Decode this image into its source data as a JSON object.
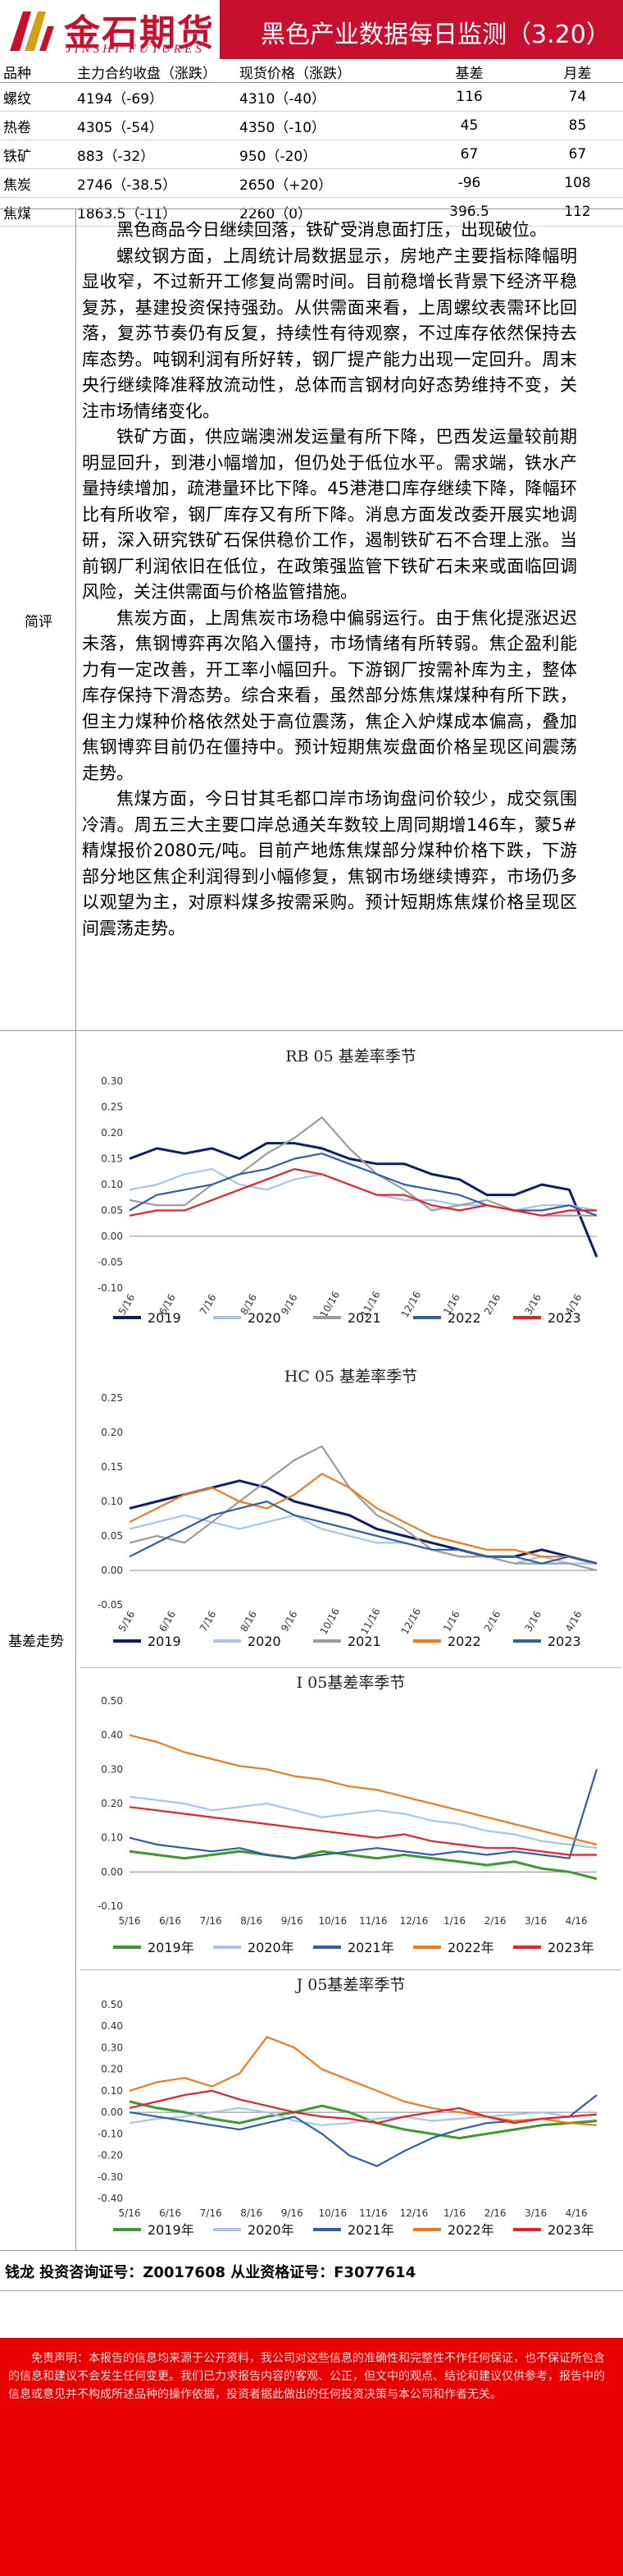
{
  "header": {
    "logo_cn": "金石期货",
    "logo_en": "JINSHI FUTURES",
    "title": "黑色产业数据每日监测（3.20）"
  },
  "price_table": {
    "headers": [
      "品种",
      "主力合约收盘（涨跌）",
      "现货价格（涨跌）",
      "基差",
      "月差"
    ],
    "rows": [
      [
        "螺纹",
        "4194（-69）",
        "4310（-40）",
        "116",
        "74"
      ],
      [
        "热卷",
        "4305（-54）",
        "4350（-10）",
        "45",
        "85"
      ],
      [
        "铁矿",
        "883（-32）",
        "950（-20）",
        "67",
        "67"
      ],
      [
        "焦炭",
        "2746（-38.5）",
        "2650（+20）",
        "-96",
        "108"
      ],
      [
        "焦煤",
        "1863.5（-11）",
        "2260（0）",
        "396.5",
        "112"
      ]
    ]
  },
  "commentary": {
    "label": "简评",
    "paragraphs": [
      "黑色商品今日继续回落，铁矿受消息面打压，出现破位。",
      "螺纹钢方面，上周统计局数据显示，房地产主要指标降幅明显收窄，不过新开工修复尚需时间。目前稳增长背景下经济平稳复苏，基建投资保持强劲。从供需面来看，上周螺纹表需环比回落，复苏节奏仍有反复，持续性有待观察，不过库存依然保持去库态势。吨钢利润有所好转，钢厂提产能力出现一定回升。周末央行继续降准释放流动性，总体而言钢材向好态势维持不变，关注市场情绪变化。",
      "铁矿方面，供应端澳洲发运量有所下降，巴西发运量较前期明显回升，到港小幅增加，但仍处于低位水平。需求端，铁水产量持续增加，疏港量环比下降。45港港口库存继续下降，降幅环比有所收窄，钢厂库存又有所下降。消息方面发改委开展实地调研，深入研究铁矿石保供稳价工作，遏制铁矿石不合理上涨。当前钢厂利润依旧在低位，在政策强监管下铁矿石未来或面临回调风险，关注供需面与价格监管措施。",
      "焦炭方面，上周焦炭市场稳中偏弱运行。由于焦化提涨迟迟未落，焦钢博弈再次陷入僵持，市场情绪有所转弱。焦企盈利能力有一定改善，开工率小幅回升。下游钢厂按需补库为主，整体库存保持下滑态势。综合来看，虽然部分炼焦煤煤种有所下跌，但主力煤种价格依然处于高位震荡，焦企入炉煤成本偏高，叠加焦钢博弈目前仍在僵持中。预计短期焦炭盘面价格呈现区间震荡走势。",
      "焦煤方面，今日甘其毛都口岸市场询盘问价较少，成交氛围冷清。周五三大主要口岸总通关车数较上周同期增146车，蒙5#精煤报价2080元/吨。目前产地炼焦煤部分煤种价格下跌，下游部分地区焦企利润得到小幅修复，焦钢市场继续博弈，市场仍多以观望为主，对原料煤多按需采购。预计短期炼焦煤价格呈现区间震荡走势。"
    ]
  },
  "basis": {
    "label": "基差走势"
  },
  "charts": [
    {
      "type": "line",
      "title": "RB 05 基差率季节",
      "x_ticks": [
        "5/16",
        "6/16",
        "7/16",
        "8/16",
        "9/16",
        "10/16",
        "11/16",
        "12/16",
        "1/16",
        "2/16",
        "3/16",
        "4/16"
      ],
      "ylim": [
        -0.1,
        0.3
      ],
      "y_ticks": [
        "0.30",
        "0.25",
        "0.20",
        "0.15",
        "0.10",
        "0.05",
        "0.00",
        "-0.05",
        "-0.10"
      ],
      "legend": [
        "2019",
        "2020",
        "2021",
        "2022",
        "2023"
      ],
      "colors": [
        "#0b1e6e",
        "#a9c4e8",
        "#9c9c9c",
        "#2e5fa8",
        "#e8202a"
      ],
      "series": [
        {
          "name": "2019",
          "values": [
            0.15,
            0.17,
            0.16,
            0.17,
            0.15,
            0.18,
            0.18,
            0.17,
            0.15,
            0.14,
            0.14,
            0.12,
            0.11,
            0.08,
            0.08,
            0.1,
            0.09,
            -0.04
          ]
        },
        {
          "name": "2020",
          "values": [
            0.09,
            0.1,
            0.12,
            0.13,
            0.1,
            0.09,
            0.11,
            0.12,
            0.1,
            0.08,
            0.07,
            0.07,
            0.06,
            0.06,
            0.05,
            0.06,
            0.06,
            0.05
          ]
        },
        {
          "name": "2021",
          "values": [
            0.07,
            0.06,
            0.06,
            0.1,
            0.12,
            0.16,
            0.19,
            0.23,
            0.17,
            0.12,
            0.09,
            0.05,
            0.06,
            0.07,
            0.05,
            0.04,
            0.04,
            0.04
          ]
        },
        {
          "name": "2022",
          "values": [
            0.05,
            0.08,
            0.09,
            0.1,
            0.12,
            0.13,
            0.15,
            0.16,
            0.14,
            0.12,
            0.1,
            0.09,
            0.08,
            0.06,
            0.05,
            0.05,
            0.06,
            0.04
          ]
        },
        {
          "name": "2023",
          "values": [
            0.04,
            0.05,
            0.05,
            0.07,
            0.09,
            0.11,
            0.13,
            0.12,
            0.1,
            0.08,
            0.08,
            0.06,
            0.05,
            0.06,
            0.05,
            0.04,
            0.05,
            0.05
          ]
        }
      ]
    },
    {
      "type": "line",
      "title": "HC 05 基差率季节",
      "x_ticks": [
        "5/16",
        "6/16",
        "7/16",
        "8/16",
        "9/16",
        "10/16",
        "11/16",
        "12/16",
        "1/16",
        "2/16",
        "3/16",
        "4/16"
      ],
      "ylim": [
        -0.05,
        0.25
      ],
      "y_ticks": [
        "0.25",
        "0.20",
        "0.15",
        "0.10",
        "0.05",
        "0.00",
        "-0.05"
      ],
      "legend": [
        "2019",
        "2020",
        "2021",
        "2022",
        "2023"
      ],
      "colors": [
        "#0b1e6e",
        "#a9c4e8",
        "#9c9c9c",
        "#f07a1a",
        "#2e5fa8"
      ],
      "series": [
        {
          "name": "2019",
          "values": [
            0.09,
            0.1,
            0.11,
            0.12,
            0.13,
            0.12,
            0.1,
            0.09,
            0.08,
            0.06,
            0.05,
            0.04,
            0.03,
            0.02,
            0.02,
            0.03,
            0.02,
            0.01
          ]
        },
        {
          "name": "2020",
          "values": [
            0.06,
            0.07,
            0.08,
            0.07,
            0.06,
            0.07,
            0.08,
            0.06,
            0.05,
            0.04,
            0.04,
            0.03,
            0.02,
            0.02,
            0.01,
            0.02,
            0.01,
            0.01
          ]
        },
        {
          "name": "2021",
          "values": [
            0.04,
            0.05,
            0.04,
            0.07,
            0.1,
            0.13,
            0.16,
            0.18,
            0.12,
            0.08,
            0.06,
            0.03,
            0.02,
            0.02,
            0.01,
            0.01,
            0.01,
            0.0
          ]
        },
        {
          "name": "2022",
          "values": [
            0.07,
            0.09,
            0.11,
            0.12,
            0.1,
            0.09,
            0.11,
            0.14,
            0.12,
            0.09,
            0.07,
            0.05,
            0.04,
            0.03,
            0.03,
            0.02,
            0.02,
            0.01
          ]
        },
        {
          "name": "2023",
          "values": [
            0.02,
            0.04,
            0.06,
            0.08,
            0.09,
            0.1,
            0.08,
            0.07,
            0.06,
            0.05,
            0.04,
            0.03,
            0.03,
            0.02,
            0.02,
            0.01,
            0.02,
            0.01
          ]
        }
      ]
    },
    {
      "type": "line",
      "title": "I 05基差率季节",
      "x_ticks": [
        "5/16",
        "6/16",
        "7/16",
        "8/16",
        "9/16",
        "10/16",
        "11/16",
        "12/16",
        "1/16",
        "2/16",
        "3/16",
        "4/16"
      ],
      "ylim": [
        -0.1,
        0.5
      ],
      "y_ticks": [
        "0.50",
        "0.40",
        "0.30",
        "0.20",
        "0.10",
        "0.00",
        "-0.10"
      ],
      "legend": [
        "2019年",
        "2020年",
        "2021年",
        "2022年",
        "2023年"
      ],
      "colors": [
        "#3a9a2a",
        "#a9c4e8",
        "#2e5fa8",
        "#f07a1a",
        "#e8202a"
      ],
      "series": [
        {
          "name": "2019年",
          "values": [
            0.06,
            0.05,
            0.04,
            0.05,
            0.06,
            0.05,
            0.04,
            0.06,
            0.05,
            0.04,
            0.05,
            0.04,
            0.03,
            0.02,
            0.03,
            0.01,
            0.0,
            -0.02
          ]
        },
        {
          "name": "2020年",
          "values": [
            0.22,
            0.21,
            0.2,
            0.18,
            0.19,
            0.2,
            0.18,
            0.16,
            0.17,
            0.18,
            0.17,
            0.15,
            0.14,
            0.12,
            0.11,
            0.09,
            0.08,
            0.07
          ]
        },
        {
          "name": "2021年",
          "values": [
            0.1,
            0.08,
            0.07,
            0.06,
            0.07,
            0.05,
            0.04,
            0.05,
            0.06,
            0.07,
            0.06,
            0.05,
            0.06,
            0.05,
            0.06,
            0.05,
            0.04,
            0.3
          ]
        },
        {
          "name": "2022年",
          "values": [
            0.4,
            0.38,
            0.35,
            0.33,
            0.31,
            0.3,
            0.28,
            0.27,
            0.25,
            0.24,
            0.22,
            0.2,
            0.18,
            0.16,
            0.14,
            0.12,
            0.1,
            0.08
          ]
        },
        {
          "name": "2023年",
          "values": [
            0.19,
            0.18,
            0.17,
            0.16,
            0.15,
            0.14,
            0.13,
            0.12,
            0.11,
            0.1,
            0.11,
            0.09,
            0.08,
            0.07,
            0.07,
            0.06,
            0.05,
            0.05
          ]
        }
      ]
    },
    {
      "type": "line",
      "title": "J 05基差率季节",
      "x_ticks": [
        "5/16",
        "6/16",
        "7/16",
        "8/16",
        "9/16",
        "10/16",
        "11/16",
        "12/16",
        "1/16",
        "2/16",
        "3/16",
        "4/16"
      ],
      "ylim": [
        -0.4,
        0.5
      ],
      "y_ticks": [
        "0.50",
        "0.40",
        "0.30",
        "0.20",
        "0.10",
        "0.00",
        "-0.10",
        "-0.20",
        "-0.30",
        "-0.40"
      ],
      "legend": [
        "2019年",
        "2020年",
        "2021年",
        "2022年",
        "2023年"
      ],
      "colors": [
        "#3a9a2a",
        "#a9c4e8",
        "#2e5fa8",
        "#f07a1a",
        "#e8202a"
      ],
      "series": [
        {
          "name": "2019年",
          "values": [
            0.05,
            0.02,
            0.0,
            -0.03,
            -0.05,
            -0.02,
            0.0,
            0.03,
            0.0,
            -0.05,
            -0.08,
            -0.1,
            -0.12,
            -0.1,
            -0.08,
            -0.06,
            -0.05,
            -0.04
          ]
        },
        {
          "name": "2020年",
          "values": [
            -0.05,
            -0.03,
            -0.02,
            0.0,
            0.02,
            0.0,
            -0.04,
            -0.06,
            -0.05,
            -0.03,
            -0.02,
            -0.04,
            -0.03,
            -0.02,
            -0.01,
            0.0,
            -0.02,
            -0.01
          ]
        },
        {
          "name": "2021年",
          "values": [
            0.0,
            -0.02,
            -0.04,
            -0.06,
            -0.08,
            -0.05,
            -0.02,
            -0.1,
            -0.2,
            -0.25,
            -0.18,
            -0.12,
            -0.08,
            -0.05,
            -0.04,
            -0.03,
            -0.02,
            0.08
          ]
        },
        {
          "name": "2022年",
          "values": [
            0.1,
            0.14,
            0.16,
            0.12,
            0.18,
            0.35,
            0.3,
            0.2,
            0.15,
            0.1,
            0.05,
            0.02,
            0.0,
            -0.02,
            -0.04,
            -0.03,
            -0.05,
            -0.06
          ]
        },
        {
          "name": "2023年",
          "values": [
            0.02,
            0.05,
            0.08,
            0.1,
            0.06,
            0.03,
            0.0,
            -0.02,
            -0.03,
            -0.05,
            -0.02,
            0.0,
            0.02,
            -0.02,
            -0.05,
            -0.03,
            -0.02,
            -0.01
          ]
        }
      ]
    }
  ],
  "footer": {
    "license": "钱龙  投资咨询证号：Z0017608  从业资格证号：F3077614",
    "disclaimer": "免责声明：本报告的信息均来源于公开资料，我公司对这些信息的准确性和完整性不作任何保证，也不保证所包含的信息和建议不会发生任何变更。我们已力求报告内容的客观、公正，但文中的观点、结论和建议仅供参考，报告中的信息或意见并不构成所述品种的操作依据，投资者据此做出的任何投资决策与本公司和作者无关。"
  }
}
